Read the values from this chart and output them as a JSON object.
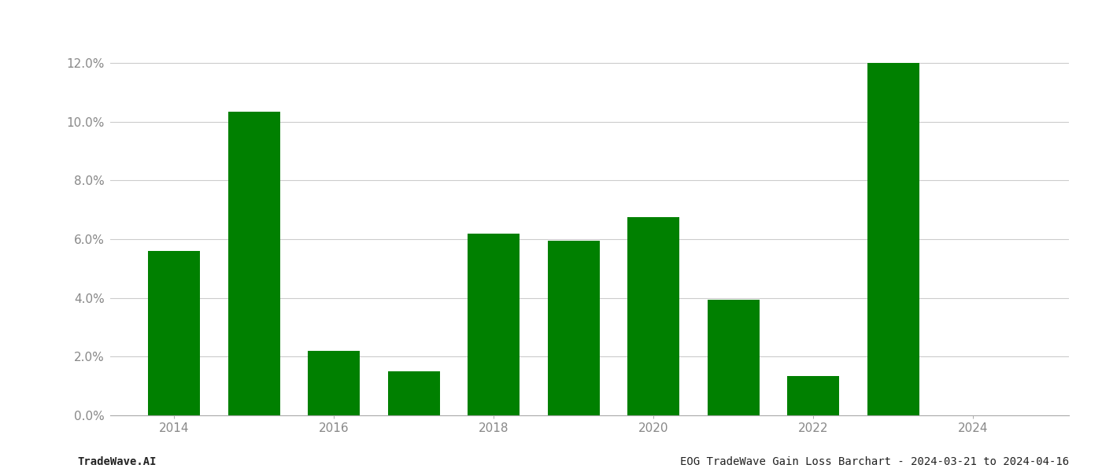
{
  "years": [
    2014,
    2015,
    2016,
    2017,
    2018,
    2019,
    2020,
    2021,
    2022,
    2023,
    2024
  ],
  "values": [
    0.056,
    0.1035,
    0.022,
    0.015,
    0.062,
    0.0595,
    0.0675,
    0.0395,
    0.0135,
    0.12,
    0.0
  ],
  "bar_color": "#008000",
  "background_color": "#ffffff",
  "grid_color": "#cccccc",
  "footer_left": "TradeWave.AI",
  "footer_right": "EOG TradeWave Gain Loss Barchart - 2024-03-21 to 2024-04-16",
  "ylim": [
    0,
    0.135
  ],
  "ytick_values": [
    0.0,
    0.02,
    0.04,
    0.06,
    0.08,
    0.1,
    0.12
  ],
  "xtick_positions": [
    2014,
    2016,
    2018,
    2020,
    2022,
    2024
  ],
  "xlim": [
    2013.2,
    2025.2
  ],
  "tick_label_color": "#888888",
  "footer_fontsize": 10,
  "axis_fontsize": 11,
  "bar_width": 0.65
}
